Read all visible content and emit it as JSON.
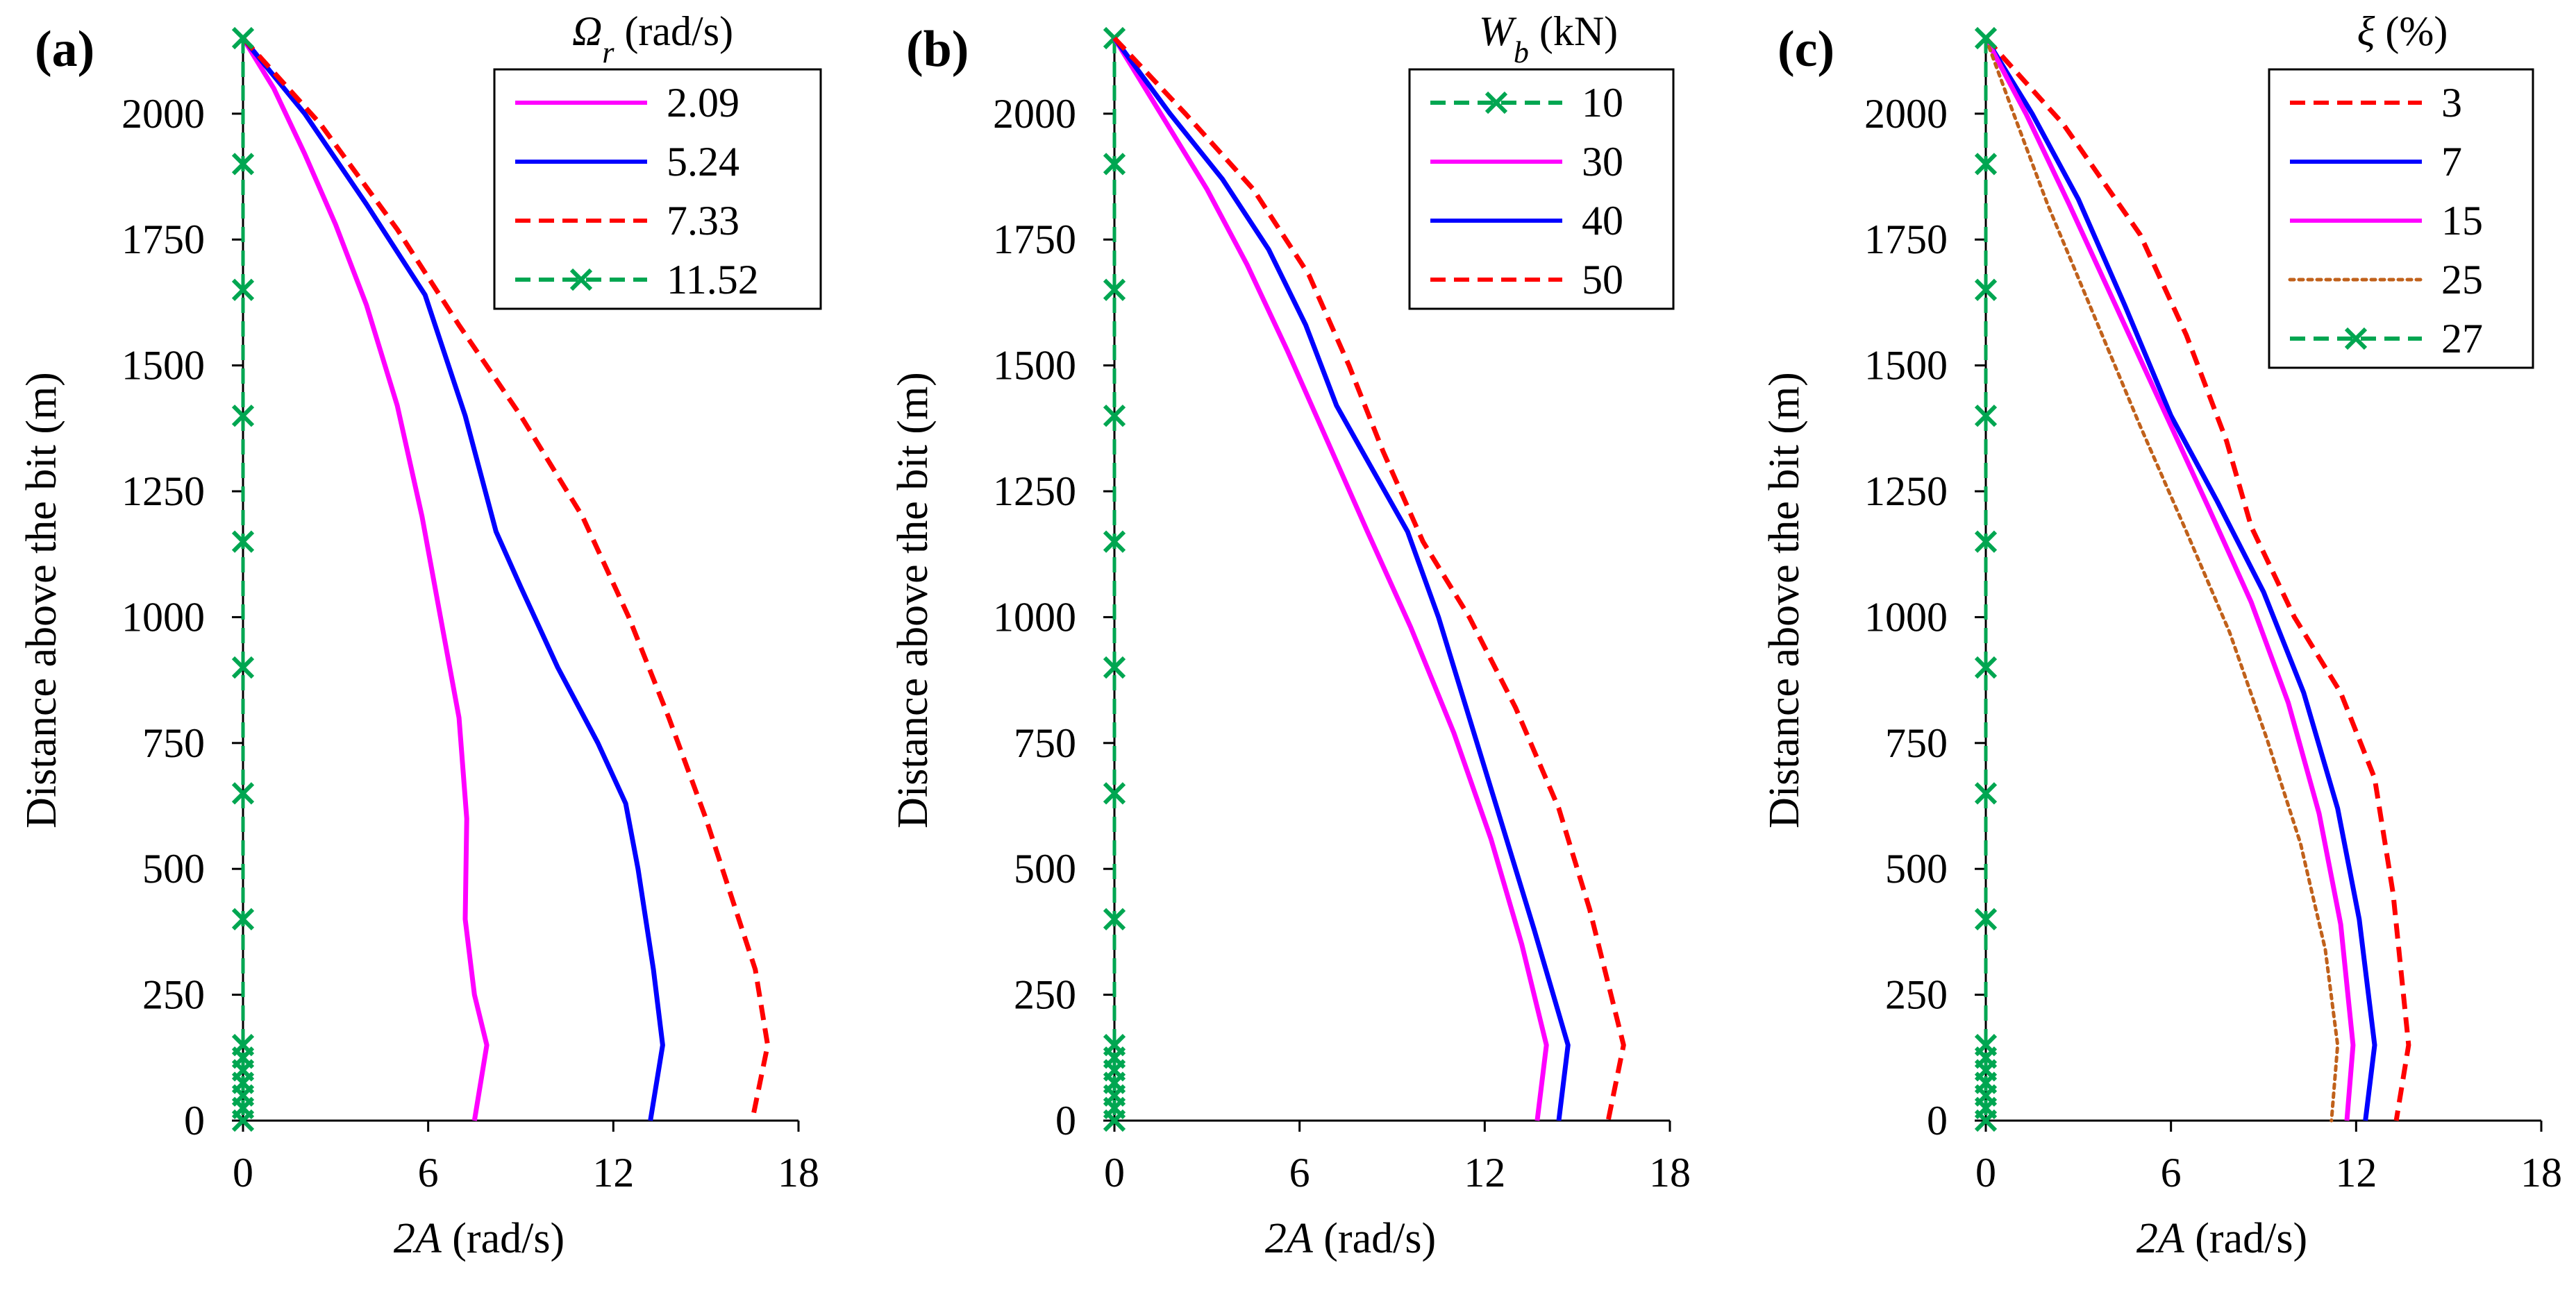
{
  "chart_data": [
    {
      "type": "line",
      "panel": "(a)",
      "xlabel": {
        "italic": "2A",
        "rest": " (rad/s)"
      },
      "ylabel": "Distance above the bit (m)",
      "xlim": [
        0,
        18
      ],
      "ylim": [
        0,
        2150
      ],
      "xticks": [
        0,
        6,
        12,
        18
      ],
      "yticks": [
        0,
        250,
        500,
        750,
        1000,
        1250,
        1500,
        1750,
        2000
      ],
      "legend_title": {
        "italic": "Ω",
        "sub": "r",
        "rest": " (rad/s)"
      },
      "series": [
        {
          "name": "2.09",
          "color": "#ff00ff",
          "style": "solid",
          "x": [
            0,
            1,
            2,
            3,
            4,
            5,
            5.8,
            6.4,
            7,
            7.25,
            7.2,
            7.5,
            7.9,
            7.5
          ],
          "y": [
            2150,
            2050,
            1920,
            1780,
            1620,
            1420,
            1200,
            1000,
            800,
            600,
            400,
            250,
            150,
            0
          ]
        },
        {
          "name": "5.24",
          "color": "#0000ff",
          "style": "solid",
          "x": [
            0,
            2,
            4,
            5.9,
            7.2,
            8.2,
            9.0,
            10.2,
            11.5,
            12.4,
            12.8,
            13.3,
            13.6,
            13.2
          ],
          "y": [
            2150,
            2000,
            1820,
            1640,
            1400,
            1170,
            1060,
            900,
            750,
            630,
            500,
            300,
            150,
            0
          ]
        },
        {
          "name": "7.33",
          "color": "#ff0000",
          "style": "dashed",
          "x": [
            0,
            2.5,
            5,
            7,
            9,
            11,
            12.5,
            13.8,
            15,
            15.8,
            16.6,
            17.0,
            16.5
          ],
          "y": [
            2150,
            1980,
            1770,
            1580,
            1400,
            1200,
            1000,
            800,
            600,
            450,
            300,
            150,
            0
          ]
        },
        {
          "name": "11.52",
          "color": "#00a651",
          "style": "dashed-cross",
          "x": [
            0,
            0,
            0,
            0,
            0,
            0,
            0,
            0,
            0,
            0,
            0,
            0,
            0,
            0,
            0
          ],
          "y": [
            2150,
            1900,
            1650,
            1400,
            1150,
            900,
            650,
            400,
            150,
            125,
            100,
            75,
            50,
            25,
            0
          ]
        }
      ]
    },
    {
      "type": "line",
      "panel": "(b)",
      "xlabel": {
        "italic": "2A",
        "rest": " (rad/s)"
      },
      "ylabel": "Distance above the bit (m)",
      "xlim": [
        0,
        18
      ],
      "ylim": [
        0,
        2150
      ],
      "xticks": [
        0,
        6,
        12,
        18
      ],
      "yticks": [
        0,
        250,
        500,
        750,
        1000,
        1250,
        1500,
        1750,
        2000
      ],
      "legend_title": {
        "italic": "W",
        "sub": "b",
        "rest": " (kN)"
      },
      "series": [
        {
          "name": "10",
          "color": "#00a651",
          "style": "dashed-cross",
          "x": [
            0,
            0,
            0,
            0,
            0,
            0,
            0,
            0,
            0,
            0,
            0,
            0,
            0,
            0,
            0
          ],
          "y": [
            2150,
            1900,
            1650,
            1400,
            1150,
            900,
            650,
            400,
            150,
            125,
            100,
            75,
            50,
            25,
            0
          ]
        },
        {
          "name": "30",
          "color": "#ff00ff",
          "style": "solid",
          "x": [
            0,
            1.5,
            3,
            4.3,
            5.6,
            6.9,
            8.2,
            9.6,
            11,
            12.2,
            13.2,
            14.0,
            13.7
          ],
          "y": [
            2150,
            2000,
            1850,
            1700,
            1530,
            1350,
            1170,
            980,
            770,
            560,
            350,
            150,
            0
          ]
        },
        {
          "name": "40",
          "color": "#0000ff",
          "style": "solid",
          "x": [
            0,
            1.8,
            3.5,
            5,
            6.2,
            7.2,
            8.3,
            9.5,
            10.5,
            11.5,
            12.5,
            13.6,
            14.7,
            14.4
          ],
          "y": [
            2150,
            2000,
            1870,
            1730,
            1580,
            1420,
            1300,
            1170,
            1000,
            800,
            600,
            380,
            150,
            0
          ]
        },
        {
          "name": "50",
          "color": "#ff0000",
          "style": "dashed",
          "x": [
            0,
            2.3,
            4.5,
            6.3,
            7.6,
            8.7,
            10,
            11.5,
            13,
            14.4,
            15.4,
            16.5,
            16.0
          ],
          "y": [
            2150,
            2000,
            1850,
            1680,
            1500,
            1330,
            1150,
            1000,
            820,
            620,
            420,
            150,
            0
          ]
        }
      ]
    },
    {
      "type": "line",
      "panel": "(c)",
      "xlabel": {
        "italic": "2A",
        "rest": " (rad/s)"
      },
      "ylabel": "Distance above the bit (m)",
      "xlim": [
        0,
        18
      ],
      "ylim": [
        0,
        2150
      ],
      "xticks": [
        0,
        6,
        12,
        18
      ],
      "yticks": [
        0,
        250,
        500,
        750,
        1000,
        1250,
        1500,
        1750,
        2000
      ],
      "legend_title": {
        "italic": "ξ",
        "sub": "",
        "rest": " (%)"
      },
      "series": [
        {
          "name": "3",
          "color": "#ff0000",
          "style": "dashed",
          "x": [
            0,
            2.5,
            5,
            6.5,
            7.8,
            8.6,
            10,
            11.5,
            12.6,
            13.2,
            13.7,
            13.3
          ],
          "y": [
            2150,
            1980,
            1760,
            1560,
            1350,
            1180,
            1000,
            850,
            680,
            450,
            150,
            0
          ]
        },
        {
          "name": "7",
          "color": "#0000ff",
          "style": "solid",
          "x": [
            0,
            1.5,
            3,
            4.5,
            6,
            7.5,
            9,
            10.3,
            11.4,
            12.1,
            12.6,
            12.3
          ],
          "y": [
            2150,
            2000,
            1830,
            1620,
            1400,
            1230,
            1050,
            850,
            620,
            400,
            150,
            0
          ]
        },
        {
          "name": "15",
          "color": "#ff00ff",
          "style": "solid",
          "x": [
            0,
            1.3,
            2.7,
            4.2,
            5.7,
            7.2,
            8.6,
            9.8,
            10.8,
            11.5,
            11.9,
            11.7
          ],
          "y": [
            2150,
            2000,
            1820,
            1620,
            1420,
            1220,
            1030,
            830,
            610,
            390,
            150,
            0
          ]
        },
        {
          "name": "25",
          "color": "#c0611b",
          "style": "dotted",
          "x": [
            0,
            0.9,
            2,
            3.5,
            5,
            6.5,
            7.9,
            9.1,
            10.2,
            11.0,
            11.4,
            11.2
          ],
          "y": [
            2150,
            2000,
            1820,
            1600,
            1380,
            1170,
            970,
            760,
            550,
            340,
            150,
            0
          ]
        },
        {
          "name": "27",
          "color": "#00a651",
          "style": "dashed-cross",
          "x": [
            0,
            0,
            0,
            0,
            0,
            0,
            0,
            0,
            0,
            0,
            0,
            0,
            0,
            0,
            0
          ],
          "y": [
            2150,
            1900,
            1650,
            1400,
            1150,
            900,
            650,
            400,
            150,
            125,
            100,
            75,
            50,
            25,
            0
          ]
        }
      ]
    }
  ]
}
